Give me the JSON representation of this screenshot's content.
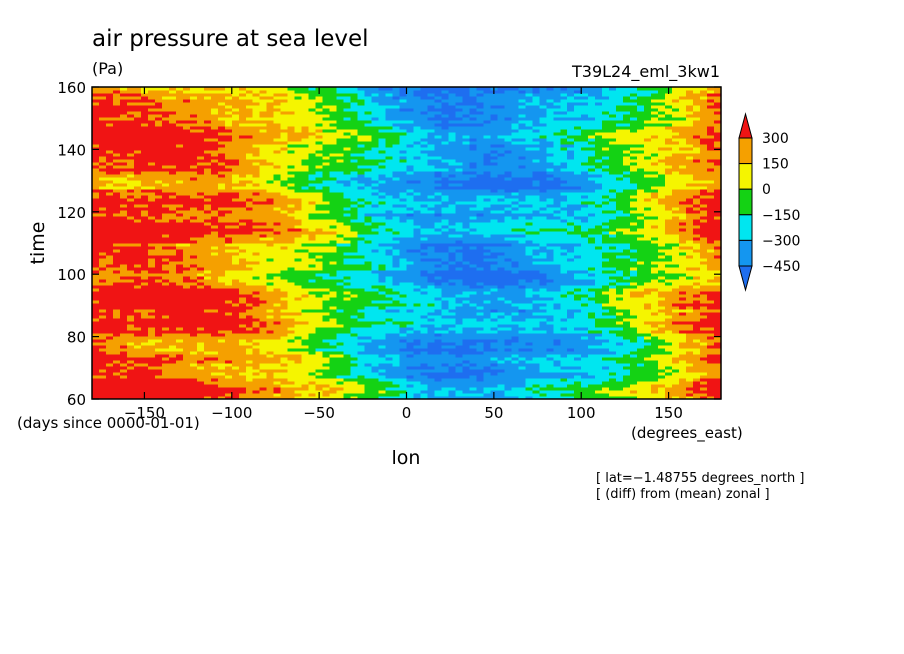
{
  "chart_data": {
    "type": "heatmap",
    "title": "air pressure at sea level",
    "units": "(Pa)",
    "experiment": "T39L24_eml_3kw1",
    "xlabel": "lon",
    "ylabel": "time",
    "x_units": "(degrees_east)",
    "y_units": "(days since 0000-01-01)",
    "xlim": [
      -180,
      180
    ],
    "ylim": [
      60,
      160
    ],
    "x_ticks": [
      -150,
      -100,
      -50,
      0,
      50,
      100,
      150
    ],
    "x_tick_labels": [
      "−150",
      "−100",
      "−50",
      "0",
      "50",
      "100",
      "150"
    ],
    "y_ticks": [
      60,
      80,
      100,
      120,
      140,
      160
    ],
    "y_tick_labels": [
      "60",
      "80",
      "100",
      "120",
      "140",
      "160"
    ],
    "notes": [
      "[ lat=−1.48755 degrees_north ]",
      "[ (diff) from (mean) zonal ]"
    ],
    "colorbar": {
      "levels": [
        -450,
        -300,
        -150,
        0,
        150,
        300
      ],
      "labels": [
        "300",
        "150",
        "0",
        "−150",
        "−300",
        "−450"
      ],
      "colors": [
        "#1e6ef0",
        "#1496f0",
        "#00e6f0",
        "#14d214",
        "#f5f500",
        "#f5a000",
        "#f01414"
      ],
      "extend": "both"
    },
    "field_profile": {
      "lon": [
        -180,
        -150,
        -120,
        -100,
        -80,
        -60,
        -40,
        -20,
        0,
        20,
        40,
        60,
        80,
        100,
        120,
        140,
        160,
        180
      ],
      "mean_value": [
        340,
        330,
        310,
        250,
        170,
        60,
        -60,
        -200,
        -310,
        -380,
        -400,
        -370,
        -320,
        -250,
        -120,
        30,
        180,
        320
      ]
    }
  }
}
